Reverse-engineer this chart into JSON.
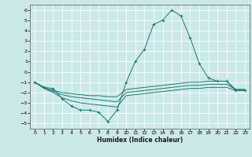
{
  "xlabel": "Humidex (Indice chaleur)",
  "bg_color": "#cce9e9",
  "grid_color": "#ffffff",
  "line_color": "#1a7a6e",
  "xlim": [
    -0.5,
    23.5
  ],
  "ylim": [
    -5.5,
    6.5
  ],
  "yticks": [
    -5,
    -4,
    -3,
    -2,
    -1,
    0,
    1,
    2,
    3,
    4,
    5,
    6
  ],
  "xticks": [
    0,
    1,
    2,
    3,
    4,
    5,
    6,
    7,
    8,
    9,
    10,
    11,
    12,
    13,
    14,
    15,
    16,
    17,
    18,
    19,
    20,
    21,
    22,
    23
  ],
  "lines": [
    {
      "x": [
        0,
        1,
        2,
        3,
        4,
        5,
        6,
        7,
        8,
        9,
        10,
        11,
        12,
        13,
        14,
        15,
        16,
        17,
        18,
        19,
        20,
        21,
        22,
        23
      ],
      "y": [
        -1.0,
        -1.5,
        -1.6,
        -2.6,
        -3.3,
        -3.7,
        -3.7,
        -3.9,
        -4.8,
        -3.7,
        -1.0,
        1.0,
        2.2,
        4.6,
        5.0,
        6.0,
        5.4,
        3.3,
        0.8,
        -0.6,
        -0.9,
        -0.9,
        -1.8,
        -1.8
      ],
      "marker": "+"
    },
    {
      "x": [
        0,
        1,
        2,
        3,
        4,
        5,
        6,
        7,
        8,
        9,
        10,
        11,
        12,
        13,
        14,
        15,
        16,
        17,
        18,
        19,
        20,
        21,
        22,
        23
      ],
      "y": [
        -1.0,
        -1.5,
        -1.8,
        -2.0,
        -2.1,
        -2.2,
        -2.3,
        -2.3,
        -2.4,
        -2.4,
        -1.7,
        -1.6,
        -1.5,
        -1.4,
        -1.3,
        -1.2,
        -1.1,
        -1.0,
        -1.0,
        -0.9,
        -0.9,
        -0.9,
        -1.7,
        -1.7
      ],
      "marker": null
    },
    {
      "x": [
        0,
        1,
        2,
        3,
        4,
        5,
        6,
        7,
        8,
        9,
        10,
        11,
        12,
        13,
        14,
        15,
        16,
        17,
        18,
        19,
        20,
        21,
        22,
        23
      ],
      "y": [
        -1.0,
        -1.5,
        -1.9,
        -2.2,
        -2.4,
        -2.5,
        -2.6,
        -2.7,
        -2.8,
        -2.9,
        -2.0,
        -1.9,
        -1.8,
        -1.7,
        -1.6,
        -1.5,
        -1.4,
        -1.3,
        -1.3,
        -1.2,
        -1.2,
        -1.2,
        -1.7,
        -1.7
      ],
      "marker": null
    },
    {
      "x": [
        0,
        1,
        2,
        3,
        4,
        5,
        6,
        7,
        8,
        9,
        10,
        11,
        12,
        13,
        14,
        15,
        16,
        17,
        18,
        19,
        20,
        21,
        22,
        23
      ],
      "y": [
        -1.0,
        -1.6,
        -2.0,
        -2.5,
        -2.8,
        -3.0,
        -3.1,
        -3.2,
        -3.3,
        -3.4,
        -2.3,
        -2.2,
        -2.1,
        -2.0,
        -1.9,
        -1.8,
        -1.7,
        -1.6,
        -1.6,
        -1.5,
        -1.5,
        -1.5,
        -1.8,
        -1.8
      ],
      "marker": null
    }
  ]
}
